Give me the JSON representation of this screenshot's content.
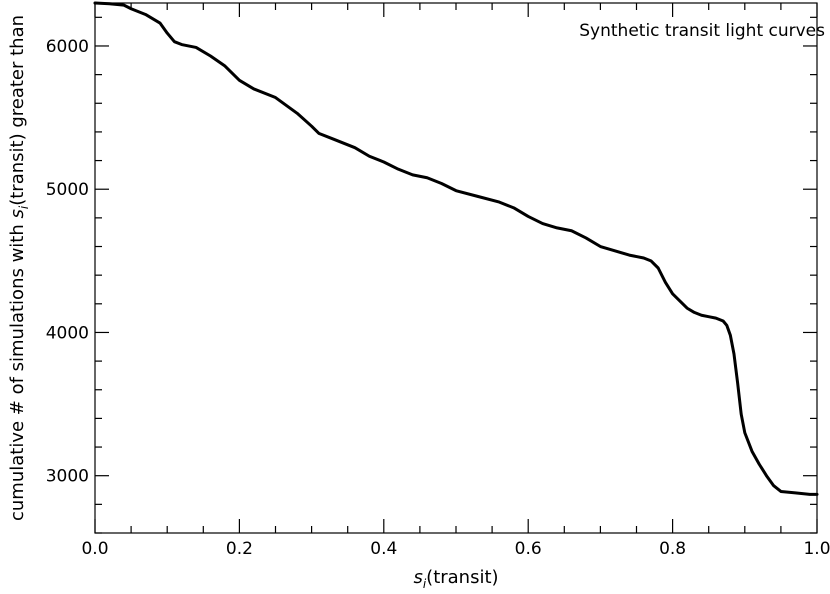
{
  "chart_data": {
    "type": "line",
    "title": "",
    "legend_label": "Synthetic transit light curves",
    "legend_position": "top-right",
    "xlabel": {
      "var": "s",
      "sub": "i",
      "rest": "(transit)"
    },
    "ylabel": {
      "pre": "cumulative # of simulations with ",
      "var": "s",
      "sub": "i",
      "post": "(transit)  greater than"
    },
    "xlim": [
      0.0,
      1.0
    ],
    "ylim": [
      2600,
      6300
    ],
    "x_ticks": [
      "0.0",
      "0.2",
      "0.4",
      "0.6",
      "0.8",
      "1.0"
    ],
    "y_ticks": [
      "3000",
      "4000",
      "5000",
      "6000"
    ],
    "grid": false,
    "line_color": "#000000",
    "series": [
      {
        "x": [
          0.0,
          0.02,
          0.04,
          0.05,
          0.07,
          0.09,
          0.1,
          0.11,
          0.12,
          0.14,
          0.16,
          0.18,
          0.2,
          0.22,
          0.25,
          0.28,
          0.3,
          0.31,
          0.33,
          0.36,
          0.38,
          0.4,
          0.42,
          0.44,
          0.46,
          0.48,
          0.5,
          0.53,
          0.56,
          0.58,
          0.6,
          0.62,
          0.64,
          0.66,
          0.68,
          0.7,
          0.72,
          0.74,
          0.76,
          0.77,
          0.78,
          0.79,
          0.8,
          0.81,
          0.82,
          0.83,
          0.84,
          0.85,
          0.86,
          0.87,
          0.875,
          0.88,
          0.885,
          0.89,
          0.895,
          0.9,
          0.91,
          0.92,
          0.93,
          0.94,
          0.95,
          0.97,
          0.99,
          1.0
        ],
        "y": [
          6300,
          6295,
          6285,
          6260,
          6220,
          6160,
          6090,
          6030,
          6010,
          5990,
          5930,
          5860,
          5760,
          5700,
          5640,
          5530,
          5440,
          5390,
          5350,
          5290,
          5230,
          5190,
          5140,
          5100,
          5080,
          5040,
          4990,
          4950,
          4910,
          4870,
          4810,
          4760,
          4730,
          4710,
          4660,
          4600,
          4570,
          4540,
          4520,
          4500,
          4450,
          4350,
          4270,
          4220,
          4170,
          4140,
          4120,
          4110,
          4100,
          4080,
          4050,
          3980,
          3850,
          3650,
          3430,
          3300,
          3170,
          3080,
          3000,
          2930,
          2890,
          2880,
          2870,
          2870
        ]
      }
    ]
  }
}
